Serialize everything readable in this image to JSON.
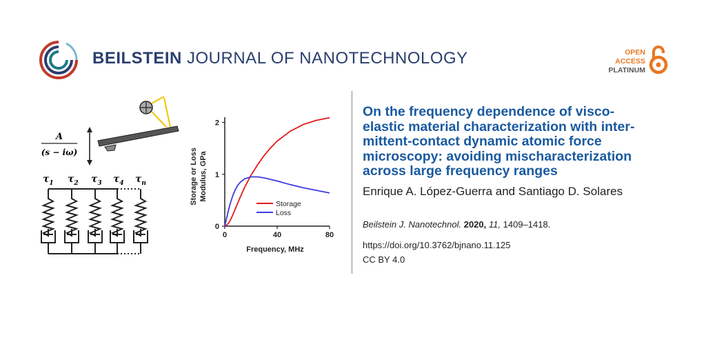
{
  "header": {
    "journal_bold": "BEILSTEIN",
    "journal_rest": "JOURNAL OF NANOTECHNOLOGY",
    "open_access": [
      "OPEN",
      "ACCESS"
    ],
    "platinum": "PLATINUM"
  },
  "icons": {
    "logo": "beilstein-logo-icon",
    "open_access": "open-access-lock-icon"
  },
  "colors": {
    "title": "#1a5aa0",
    "journal": "#2a3f6e",
    "oa": "#e87722",
    "storage": "#e41a1c",
    "loss": "#3b3bdd"
  },
  "article": {
    "title": "On the frequency dependence of visco-elastic material characterization with inter-mittent-contact dynamic atomic force microscopy: avoiding mischaracterization across large frequency ranges",
    "title_lines": [
      "On the frequency dependence of visco-",
      "elastic material characterization with inter-",
      "mittent-contact dynamic atomic force",
      "microscopy: avoiding mischaracterization",
      "across large frequency ranges"
    ],
    "authors": "Enrique A. López-Guerra and Santiago D. Solares",
    "citation": {
      "journal": "Beilstein J. Nanotechnol.",
      "year": "2020,",
      "volume": "11,",
      "pages": "1409–1418."
    },
    "doi": "https://doi.org/10.3762/bjnano.11.125",
    "license": "CC BY 4.0"
  },
  "graphic": {
    "fraction_num": "A",
    "fraction_den": "(s − iω)",
    "taus": [
      {
        "sym": "τ",
        "sub": "1"
      },
      {
        "sym": "τ",
        "sub": "2"
      },
      {
        "sym": "τ",
        "sub": "3"
      },
      {
        "sym": "τ",
        "sub": "4"
      },
      {
        "sym": "τ",
        "sub": "n"
      }
    ]
  },
  "chart_data": {
    "type": "line",
    "xlabel": "Frequency, MHz",
    "ylabel_lines": [
      "Storage or Loss",
      "Modulus, GPa"
    ],
    "xlim": [
      0,
      80
    ],
    "ylim": [
      0,
      2.1
    ],
    "xticks": [
      "0",
      "40",
      "80"
    ],
    "yticks": [
      "0",
      "1",
      "2"
    ],
    "series": [
      {
        "name": "Storage",
        "x": [
          0,
          2,
          4,
          6,
          8,
          10,
          12,
          15,
          20,
          25,
          30,
          35,
          40,
          50,
          60,
          70,
          80
        ],
        "y": [
          0,
          0.03,
          0.1,
          0.21,
          0.33,
          0.45,
          0.57,
          0.74,
          0.98,
          1.18,
          1.36,
          1.51,
          1.64,
          1.83,
          1.96,
          2.04,
          2.09
        ]
      },
      {
        "name": "Loss",
        "x": [
          0,
          2,
          4,
          6,
          8,
          10,
          12,
          15,
          20,
          25,
          30,
          35,
          40,
          50,
          60,
          70,
          80
        ],
        "y": [
          0,
          0.22,
          0.42,
          0.58,
          0.7,
          0.79,
          0.85,
          0.91,
          0.95,
          0.95,
          0.93,
          0.9,
          0.87,
          0.8,
          0.74,
          0.69,
          0.64
        ]
      }
    ],
    "legend": "center-right"
  }
}
